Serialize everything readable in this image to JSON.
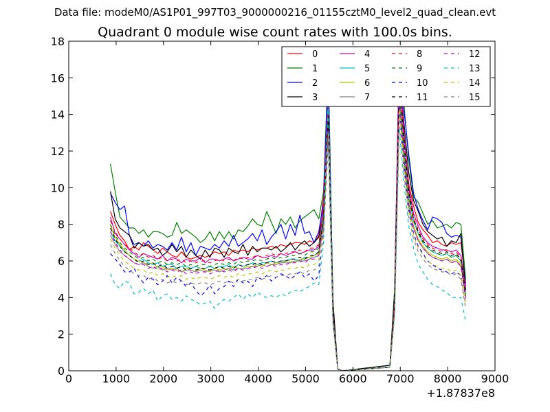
{
  "figure": {
    "header": "Data file: modeM0/AS1P01_997T03_9000000216_01155cztM0_level2_quad_clean.evt",
    "title": "Quadrant 0 module wise count rates with 100.0s bins."
  },
  "chart_data": {
    "type": "line",
    "title": "Quadrant 0 module wise count rates with 100.0s bins.",
    "xlabel": "",
    "ylabel": "",
    "x_offset_label": "+1.87837e8",
    "xlim": [
      0,
      9000
    ],
    "ylim": [
      0,
      18
    ],
    "xticks": [
      0,
      1000,
      2000,
      3000,
      4000,
      5000,
      6000,
      7000,
      8000,
      9000
    ],
    "yticks": [
      0,
      2,
      4,
      6,
      8,
      10,
      12,
      14,
      16,
      18
    ],
    "xtick_labels": [
      "0",
      "1000",
      "2000",
      "3000",
      "4000",
      "5000",
      "6000",
      "7000",
      "8000",
      "9000"
    ],
    "ytick_labels": [
      "0",
      "2",
      "4",
      "6",
      "8",
      "10",
      "12",
      "14",
      "16",
      "18"
    ],
    "grid": false,
    "legend_position": "top-right",
    "legend_columns": 4,
    "x": [
      880,
      980,
      1080,
      1180,
      1280,
      1380,
      1480,
      1580,
      1680,
      1780,
      1880,
      1980,
      2080,
      2180,
      2280,
      2380,
      2480,
      2580,
      2680,
      2780,
      2880,
      2980,
      3080,
      3180,
      3280,
      3380,
      3480,
      3580,
      3680,
      3780,
      3880,
      3980,
      4080,
      4180,
      4280,
      4380,
      4480,
      4580,
      4680,
      4780,
      4880,
      4980,
      5080,
      5180,
      5280,
      5380,
      5480,
      5580,
      5680,
      5780,
      6780,
      6880,
      6980,
      7080,
      7180,
      7280,
      7380,
      7480,
      7580,
      7680,
      7780,
      7880,
      7980,
      8080,
      8180,
      8280,
      8380
    ],
    "series": [
      {
        "name": "0",
        "color": "#ff0000",
        "dash": "solid",
        "values": [
          8.7,
          8.0,
          7.4,
          7.1,
          6.6,
          6.8,
          6.6,
          7.0,
          6.8,
          6.6,
          6.4,
          6.7,
          6.5,
          6.3,
          6.2,
          6.5,
          6.2,
          6.1,
          6.2,
          6.3,
          6.2,
          6.3,
          6.5,
          6.4,
          6.5,
          6.3,
          6.6,
          6.5,
          6.6,
          6.5,
          6.7,
          6.6,
          6.7,
          6.7,
          6.8,
          6.7,
          6.9,
          6.8,
          6.9,
          7.0,
          7.0,
          6.9,
          7.1,
          7.0,
          7.4,
          9.5,
          15.5,
          3.0,
          0.1,
          0.0,
          0.2,
          4.0,
          16.8,
          12.8,
          10.2,
          9.0,
          8.1,
          7.7,
          7.4,
          7.0,
          7.1,
          6.9,
          6.8,
          7.0,
          6.9,
          7.0,
          4.8
        ]
      },
      {
        "name": "1",
        "color": "#008000",
        "dash": "solid",
        "values": [
          11.3,
          9.8,
          8.4,
          8.1,
          7.8,
          7.8,
          7.5,
          7.7,
          7.3,
          7.6,
          7.6,
          7.5,
          7.3,
          7.4,
          8.1,
          7.5,
          7.7,
          7.5,
          7.3,
          7.0,
          7.2,
          7.6,
          7.1,
          7.6,
          7.2,
          7.6,
          7.2,
          7.7,
          7.6,
          7.9,
          8.3,
          8.0,
          7.9,
          8.7,
          8.1,
          7.5,
          8.3,
          8.0,
          8.4,
          7.8,
          8.2,
          8.4,
          8.6,
          8.8,
          8.3,
          9.8,
          16.9,
          3.5,
          0.1,
          0.0,
          0.3,
          4.5,
          17.3,
          14.5,
          11.5,
          9.5,
          9.2,
          8.6,
          8.0,
          8.2,
          7.8,
          7.9,
          8.0,
          7.8,
          8.1,
          8.0,
          5.0
        ]
      },
      {
        "name": "2",
        "color": "#0000ff",
        "dash": "solid",
        "values": [
          9.7,
          9.2,
          8.8,
          9.0,
          7.4,
          6.9,
          7.0,
          6.8,
          7.1,
          6.7,
          6.9,
          6.8,
          6.6,
          7.0,
          6.6,
          7.3,
          6.5,
          7.0,
          6.3,
          6.8,
          6.7,
          6.6,
          6.9,
          6.7,
          7.1,
          6.8,
          7.4,
          6.8,
          7.0,
          7.2,
          7.5,
          7.1,
          7.7,
          6.9,
          7.3,
          7.6,
          8.0,
          7.2,
          8.0,
          7.4,
          8.5,
          7.5,
          7.6,
          7.0,
          7.6,
          9.2,
          16.3,
          3.3,
          0.1,
          0.0,
          0.2,
          4.2,
          17.6,
          14.2,
          11.8,
          9.7,
          8.8,
          8.2,
          7.7,
          8.4,
          8.3,
          8.1,
          7.5,
          7.3,
          7.4,
          7.3,
          4.6
        ]
      },
      {
        "name": "3",
        "color": "#000000",
        "dash": "solid",
        "values": [
          9.8,
          8.3,
          7.8,
          7.6,
          7.4,
          6.7,
          7.0,
          6.8,
          6.9,
          6.6,
          6.7,
          6.3,
          6.5,
          6.9,
          6.5,
          6.8,
          6.2,
          6.6,
          6.3,
          6.1,
          6.6,
          6.2,
          6.7,
          6.6,
          6.2,
          6.7,
          6.5,
          6.4,
          6.9,
          6.3,
          6.8,
          6.5,
          6.7,
          6.7,
          6.6,
          6.8,
          6.5,
          6.7,
          7.0,
          6.6,
          6.9,
          7.1,
          6.8,
          7.0,
          7.3,
          8.8,
          14.8,
          3.8,
          0.1,
          0.0,
          0.3,
          4.2,
          16.6,
          13.5,
          10.8,
          9.3,
          8.7,
          8.0,
          7.6,
          7.4,
          7.2,
          7.3,
          6.8,
          7.1,
          7.0,
          7.5,
          4.4
        ]
      },
      {
        "name": "4",
        "color": "#c000c0",
        "dash": "solid",
        "values": [
          8.4,
          7.5,
          7.2,
          6.9,
          6.6,
          6.4,
          6.2,
          6.4,
          6.3,
          6.2,
          6.1,
          6.3,
          6.0,
          6.2,
          6.1,
          5.9,
          6.1,
          6.0,
          6.0,
          6.2,
          5.9,
          6.1,
          6.1,
          6.0,
          6.1,
          6.2,
          6.0,
          6.1,
          6.2,
          6.1,
          6.1,
          6.3,
          6.2,
          6.2,
          6.3,
          6.2,
          6.4,
          6.3,
          6.4,
          6.5,
          6.4,
          6.5,
          6.6,
          6.6,
          6.8,
          9.1,
          15.2,
          3.1,
          0.1,
          0.0,
          0.2,
          3.8,
          17.7,
          13.0,
          10.0,
          8.6,
          7.9,
          7.3,
          7.0,
          6.8,
          6.7,
          6.6,
          6.6,
          6.5,
          6.6,
          6.3,
          4.5
        ]
      },
      {
        "name": "5",
        "color": "#00bfbf",
        "dash": "solid",
        "values": [
          7.6,
          7.1,
          6.8,
          6.5,
          6.3,
          6.1,
          6.0,
          6.1,
          5.9,
          5.8,
          5.9,
          5.7,
          5.8,
          5.8,
          5.6,
          5.7,
          5.7,
          5.6,
          5.7,
          5.6,
          5.6,
          5.7,
          5.6,
          5.7,
          5.7,
          5.8,
          5.6,
          5.8,
          5.7,
          5.8,
          5.9,
          5.8,
          5.9,
          5.9,
          6.0,
          5.9,
          6.0,
          6.0,
          6.1,
          6.1,
          6.0,
          6.2,
          6.2,
          6.3,
          6.5,
          8.5,
          14.3,
          2.8,
          0.1,
          0.0,
          0.2,
          3.6,
          15.5,
          12.0,
          9.5,
          8.2,
          7.5,
          7.0,
          6.7,
          6.5,
          6.4,
          6.3,
          6.4,
          6.2,
          6.3,
          6.0,
          4.2
        ]
      },
      {
        "name": "6",
        "color": "#bfbf00",
        "dash": "solid",
        "values": [
          7.9,
          7.3,
          6.9,
          6.6,
          6.3,
          6.1,
          6.0,
          5.9,
          5.8,
          5.9,
          5.6,
          5.7,
          5.5,
          5.6,
          5.5,
          5.4,
          5.6,
          5.5,
          5.4,
          5.6,
          5.5,
          5.4,
          5.6,
          5.5,
          5.6,
          5.5,
          5.7,
          5.6,
          5.6,
          5.7,
          5.7,
          5.8,
          5.7,
          5.9,
          5.8,
          5.9,
          5.9,
          6.0,
          6.0,
          5.9,
          6.1,
          6.1,
          6.2,
          6.3,
          6.4,
          8.2,
          13.8,
          2.9,
          0.1,
          0.0,
          0.2,
          3.5,
          15.0,
          11.6,
          9.2,
          7.9,
          7.2,
          6.8,
          6.5,
          6.3,
          6.2,
          6.1,
          6.2,
          6.0,
          6.1,
          5.8,
          4.0
        ]
      },
      {
        "name": "7",
        "color": "#808080",
        "dash": "solid",
        "values": [
          7.4,
          6.9,
          6.5,
          6.3,
          6.1,
          5.9,
          5.8,
          5.9,
          5.7,
          5.6,
          5.7,
          5.5,
          5.6,
          5.5,
          5.6,
          5.4,
          5.5,
          5.5,
          5.4,
          5.5,
          5.4,
          5.5,
          5.5,
          5.4,
          5.5,
          5.6,
          5.5,
          5.6,
          5.6,
          5.6,
          5.7,
          5.7,
          5.8,
          5.7,
          5.8,
          5.8,
          5.9,
          5.9,
          5.9,
          6.0,
          6.0,
          6.0,
          6.1,
          6.2,
          6.3,
          8.0,
          13.5,
          2.7,
          0.1,
          0.0,
          0.2,
          3.4,
          14.8,
          11.4,
          9.0,
          7.8,
          7.1,
          6.7,
          6.4,
          6.2,
          6.1,
          6.0,
          6.1,
          5.9,
          6.0,
          5.7,
          4.1
        ]
      },
      {
        "name": "8",
        "color": "#ff0000",
        "dash": "dashed",
        "values": [
          8.2,
          7.6,
          7.2,
          6.9,
          6.7,
          6.5,
          6.3,
          6.4,
          6.2,
          6.3,
          6.1,
          6.2,
          6.0,
          6.1,
          6.0,
          6.1,
          5.9,
          6.0,
          5.9,
          6.0,
          6.0,
          5.9,
          6.0,
          6.1,
          6.0,
          6.1,
          6.0,
          6.2,
          6.1,
          6.2,
          6.2,
          6.3,
          6.2,
          6.3,
          6.4,
          6.3,
          6.4,
          6.4,
          6.5,
          6.5,
          6.6,
          6.5,
          6.7,
          6.7,
          6.9,
          8.8,
          14.0,
          3.0,
          0.1,
          0.0,
          0.2,
          3.7,
          15.8,
          12.4,
          9.8,
          8.4,
          7.7,
          7.2,
          6.9,
          6.7,
          6.6,
          6.5,
          6.6,
          6.4,
          6.5,
          6.2,
          4.3
        ]
      },
      {
        "name": "9",
        "color": "#008000",
        "dash": "dashed",
        "values": [
          8.0,
          7.4,
          7.0,
          6.7,
          6.5,
          6.3,
          6.1,
          6.2,
          6.0,
          6.1,
          5.9,
          6.0,
          5.8,
          5.9,
          5.8,
          5.9,
          5.7,
          5.8,
          5.7,
          5.8,
          5.8,
          5.7,
          5.8,
          5.9,
          5.8,
          5.9,
          5.8,
          6.0,
          5.9,
          6.0,
          6.0,
          6.1,
          6.0,
          6.1,
          6.2,
          6.1,
          6.2,
          6.2,
          6.3,
          6.3,
          6.4,
          6.3,
          6.5,
          6.5,
          6.7,
          8.5,
          13.6,
          2.9,
          0.1,
          0.0,
          0.2,
          3.6,
          15.3,
          12.0,
          9.5,
          8.2,
          7.5,
          7.0,
          6.7,
          6.5,
          6.4,
          6.3,
          6.4,
          6.2,
          6.3,
          6.0,
          4.1
        ]
      },
      {
        "name": "10",
        "color": "#0000ff",
        "dash": "dashed",
        "values": [
          6.4,
          6.1,
          5.8,
          5.4,
          5.4,
          5.6,
          5.1,
          4.8,
          5.1,
          5.0,
          4.7,
          4.9,
          5.2,
          4.8,
          5.1,
          4.9,
          4.6,
          4.8,
          4.4,
          4.1,
          4.3,
          4.7,
          4.2,
          4.5,
          4.6,
          4.9,
          4.6,
          5.0,
          4.8,
          4.9,
          4.6,
          5.1,
          5.0,
          5.2,
          4.9,
          5.1,
          5.3,
          5.2,
          5.0,
          5.2,
          5.4,
          5.1,
          5.3,
          4.9,
          5.2,
          7.8,
          12.6,
          2.7,
          0.1,
          0.0,
          0.2,
          3.3,
          14.5,
          11.2,
          8.8,
          7.5,
          6.8,
          6.4,
          6.0,
          5.8,
          5.6,
          5.5,
          5.4,
          5.3,
          5.4,
          5.2,
          3.6
        ]
      },
      {
        "name": "11",
        "color": "#000000",
        "dash": "dashed",
        "values": [
          7.8,
          7.2,
          6.8,
          6.5,
          6.3,
          6.1,
          5.9,
          6.0,
          5.8,
          5.9,
          5.7,
          5.8,
          5.6,
          5.7,
          5.6,
          5.7,
          5.5,
          5.6,
          5.5,
          5.6,
          5.6,
          5.5,
          5.6,
          5.7,
          5.6,
          5.7,
          5.6,
          5.8,
          5.7,
          5.8,
          5.8,
          5.9,
          5.8,
          5.9,
          6.0,
          5.9,
          6.0,
          6.0,
          6.1,
          6.1,
          6.2,
          6.1,
          6.3,
          6.3,
          6.5,
          8.3,
          13.9,
          2.8,
          0.1,
          0.0,
          0.2,
          3.5,
          16.2,
          12.6,
          9.8,
          8.3,
          7.6,
          7.1,
          6.8,
          6.6,
          6.5,
          6.4,
          6.5,
          6.3,
          6.4,
          6.1,
          4.2
        ]
      },
      {
        "name": "12",
        "color": "#c000c0",
        "dash": "dashed",
        "values": [
          7.6,
          7.0,
          6.6,
          6.3,
          6.1,
          5.9,
          5.8,
          5.8,
          5.6,
          5.7,
          5.5,
          5.6,
          5.4,
          5.5,
          5.4,
          5.5,
          5.3,
          5.4,
          5.3,
          5.4,
          5.4,
          5.3,
          5.4,
          5.5,
          5.4,
          5.5,
          5.4,
          5.6,
          5.5,
          5.6,
          5.6,
          5.7,
          5.6,
          5.7,
          5.8,
          5.7,
          5.8,
          5.8,
          5.9,
          5.9,
          6.0,
          5.9,
          6.1,
          6.1,
          6.3,
          8.0,
          13.2,
          2.7,
          0.1,
          0.0,
          0.2,
          3.4,
          14.9,
          11.6,
          9.1,
          7.8,
          7.1,
          6.7,
          6.4,
          6.2,
          6.1,
          6.0,
          6.1,
          5.9,
          6.0,
          5.7,
          3.9
        ]
      },
      {
        "name": "13",
        "color": "#00bfbf",
        "dash": "dashed",
        "values": [
          5.3,
          4.7,
          4.5,
          4.9,
          4.8,
          4.2,
          4.3,
          4.5,
          4.2,
          4.4,
          3.8,
          4.1,
          4.2,
          3.9,
          4.0,
          3.8,
          4.1,
          3.9,
          3.8,
          3.6,
          3.7,
          3.8,
          3.4,
          3.7,
          3.9,
          3.8,
          4.0,
          4.2,
          3.9,
          4.2,
          4.0,
          4.3,
          4.1,
          4.0,
          4.1,
          4.0,
          4.2,
          4.1,
          4.3,
          4.4,
          4.3,
          4.5,
          4.6,
          4.8,
          4.7,
          7.0,
          15.4,
          2.9,
          0.1,
          0.0,
          0.2,
          3.0,
          13.2,
          10.2,
          7.9,
          6.7,
          5.8,
          5.4,
          5.0,
          4.7,
          4.6,
          4.4,
          4.3,
          4.0,
          4.0,
          4.0,
          2.7
        ]
      },
      {
        "name": "14",
        "color": "#bfbf00",
        "dash": "dashed",
        "values": [
          7.2,
          6.7,
          6.3,
          6.0,
          5.8,
          5.6,
          5.5,
          5.5,
          5.3,
          5.4,
          5.2,
          5.3,
          5.1,
          5.2,
          5.1,
          5.2,
          5.0,
          5.1,
          5.0,
          5.1,
          5.1,
          5.0,
          5.1,
          5.2,
          5.1,
          5.2,
          5.1,
          5.3,
          5.2,
          5.3,
          5.3,
          5.4,
          5.3,
          5.4,
          5.5,
          5.4,
          5.5,
          5.5,
          5.6,
          5.6,
          5.7,
          5.6,
          5.8,
          5.8,
          6.0,
          7.7,
          12.9,
          2.6,
          0.1,
          0.0,
          0.2,
          3.2,
          14.3,
          11.1,
          8.7,
          7.4,
          6.7,
          6.3,
          6.0,
          5.8,
          5.7,
          5.6,
          5.6,
          5.4,
          5.5,
          5.2,
          3.6
        ]
      },
      {
        "name": "15",
        "color": "#808080",
        "dash": "dashed",
        "values": [
          6.9,
          6.4,
          6.0,
          5.7,
          5.5,
          5.3,
          5.2,
          5.2,
          5.0,
          5.1,
          4.9,
          5.0,
          4.8,
          4.9,
          4.8,
          4.9,
          4.7,
          4.8,
          4.7,
          4.8,
          4.8,
          4.7,
          4.8,
          4.9,
          4.8,
          4.9,
          4.8,
          5.0,
          4.9,
          5.0,
          5.0,
          5.1,
          5.0,
          5.1,
          5.2,
          5.1,
          5.2,
          5.2,
          5.3,
          5.3,
          5.4,
          5.3,
          5.5,
          5.5,
          5.7,
          7.4,
          12.4,
          2.5,
          0.1,
          0.0,
          0.2,
          3.1,
          13.8,
          10.7,
          8.4,
          7.2,
          6.5,
          6.1,
          5.8,
          5.6,
          5.5,
          5.4,
          5.4,
          5.2,
          5.3,
          5.0,
          3.4
        ]
      }
    ]
  }
}
